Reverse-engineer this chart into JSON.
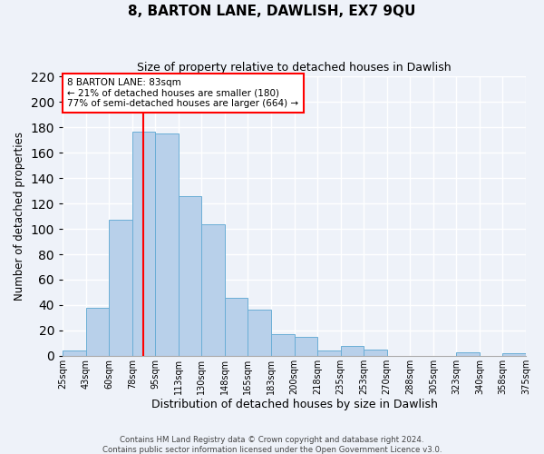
{
  "title": "8, BARTON LANE, DAWLISH, EX7 9QU",
  "subtitle": "Size of property relative to detached houses in Dawlish",
  "xlabel": "Distribution of detached houses by size in Dawlish",
  "ylabel": "Number of detached properties",
  "bar_values": [
    4,
    38,
    107,
    177,
    175,
    126,
    104,
    46,
    36,
    17,
    15,
    4,
    8,
    5,
    0,
    0,
    0,
    3,
    0,
    2
  ],
  "tick_labels": [
    "25sqm",
    "43sqm",
    "60sqm",
    "78sqm",
    "95sqm",
    "113sqm",
    "130sqm",
    "148sqm",
    "165sqm",
    "183sqm",
    "200sqm",
    "218sqm",
    "235sqm",
    "253sqm",
    "270sqm",
    "288sqm",
    "305sqm",
    "323sqm",
    "340sqm",
    "358sqm",
    "375sqm"
  ],
  "bar_color": "#b8d0ea",
  "bar_edge_color": "#6aaed6",
  "vline_index": 3.5,
  "vline_color": "red",
  "ylim": [
    0,
    220
  ],
  "yticks": [
    0,
    20,
    40,
    60,
    80,
    100,
    120,
    140,
    160,
    180,
    200,
    220
  ],
  "annotation_title": "8 BARTON LANE: 83sqm",
  "annotation_line1": "← 21% of detached houses are smaller (180)",
  "annotation_line2": "77% of semi-detached houses are larger (664) →",
  "footer1": "Contains HM Land Registry data © Crown copyright and database right 2024.",
  "footer2": "Contains public sector information licensed under the Open Government Licence v3.0.",
  "background_color": "#eef2f9",
  "grid_color": "#ffffff"
}
